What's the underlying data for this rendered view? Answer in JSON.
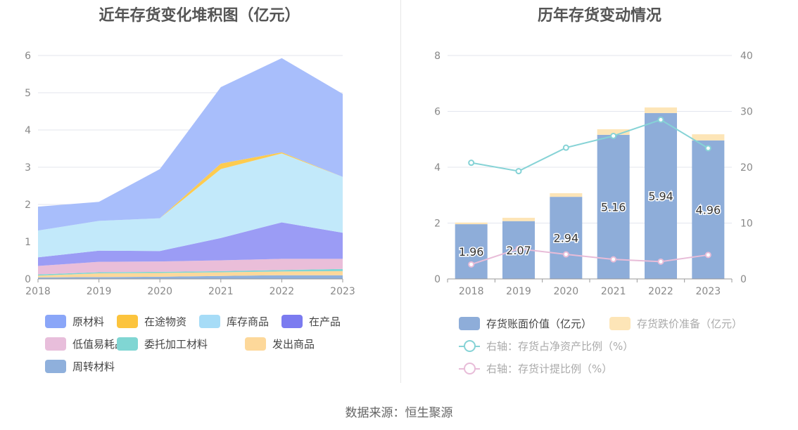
{
  "source": "数据来源：恒生聚源",
  "chart_data": [
    {
      "type": "area",
      "stacked": true,
      "title": "近年存货变化堆积图（亿元）",
      "x": [
        "2018",
        "2019",
        "2020",
        "2021",
        "2022",
        "2023"
      ],
      "ylim": [
        0,
        6
      ],
      "yticks": [
        "0",
        "1",
        "2",
        "3",
        "4",
        "5",
        "6"
      ],
      "grid": true,
      "legend_position": "bottom",
      "series": [
        {
          "name": "周转材料",
          "color": "#8fb0dc",
          "values": [
            0.04,
            0.05,
            0.06,
            0.08,
            0.1,
            0.1
          ]
        },
        {
          "name": "发出商品",
          "color": "#fdd89a",
          "values": [
            0.05,
            0.1,
            0.1,
            0.1,
            0.1,
            0.11
          ]
        },
        {
          "name": "委托加工材料",
          "color": "#80d6d3",
          "values": [
            0.03,
            0.03,
            0.03,
            0.03,
            0.04,
            0.06
          ]
        },
        {
          "name": "低值易耗品",
          "color": "#eabed9",
          "values": [
            0.23,
            0.28,
            0.28,
            0.29,
            0.3,
            0.27
          ]
        },
        {
          "name": "在产品",
          "color": "#9b9cf5",
          "values": [
            0.23,
            0.3,
            0.28,
            0.6,
            0.98,
            0.7
          ]
        },
        {
          "name": "库存商品",
          "color": "#c2e9fa",
          "values": [
            0.72,
            0.8,
            0.88,
            1.85,
            1.85,
            1.5
          ]
        },
        {
          "name": "在途物资",
          "color": "#fdcb4f",
          "values": [
            0.0,
            0.0,
            0.0,
            0.15,
            0.03,
            0.0
          ]
        },
        {
          "name": "原材料",
          "color": "#a8befb",
          "values": [
            0.64,
            0.51,
            1.32,
            2.05,
            2.53,
            2.23
          ]
        }
      ],
      "legend": [
        {
          "name": "原材料",
          "color": "#8aa6f8"
        },
        {
          "name": "在途物资",
          "color": "#fcc43d"
        },
        {
          "name": "库存商品",
          "color": "#a6dcf7"
        },
        {
          "name": "在产品",
          "color": "#7b7bf0"
        },
        {
          "name": "低值易耗品",
          "color": "#e8bedb"
        },
        {
          "name": "委托加工材料",
          "color": "#80d6d3"
        },
        {
          "name": "发出商品",
          "color": "#fdd89a"
        },
        {
          "name": "周转材料",
          "color": "#8fb0dc"
        }
      ]
    },
    {
      "type": "bar",
      "stacked": true,
      "title": "历年存货变动情况",
      "categories": [
        "2018",
        "2019",
        "2020",
        "2021",
        "2022",
        "2023"
      ],
      "ylim": [
        0,
        8
      ],
      "yticks": [
        "0",
        "2",
        "4",
        "6",
        "8"
      ],
      "y2lim": [
        0,
        40
      ],
      "y2ticks": [
        "0",
        "10",
        "20",
        "30",
        "40"
      ],
      "grid": true,
      "legend_position": "bottom",
      "series": [
        {
          "name": "存货账面价值（亿元）",
          "color": "#8eadd9",
          "values": [
            1.96,
            2.07,
            2.94,
            5.16,
            5.94,
            4.96
          ],
          "labels": [
            "1.96",
            "2.07",
            "2.94",
            "5.16",
            "5.94",
            "4.96"
          ]
        },
        {
          "name": "存货跌价准备（亿元）",
          "color": "#fde5b7",
          "values": [
            0.06,
            0.12,
            0.13,
            0.2,
            0.2,
            0.22
          ]
        }
      ],
      "lines": [
        {
          "name": "右轴：存货占净资产比例（%）",
          "color": "#86d3d6",
          "axis": "right",
          "values": [
            20.8,
            19.3,
            23.5,
            25.6,
            28.5,
            23.4
          ]
        },
        {
          "name": "右轴：存货计提比例（%）",
          "color": "#e8bcd8",
          "axis": "right",
          "values": [
            2.6,
            5.4,
            4.4,
            3.5,
            3.1,
            4.3
          ]
        }
      ]
    }
  ]
}
